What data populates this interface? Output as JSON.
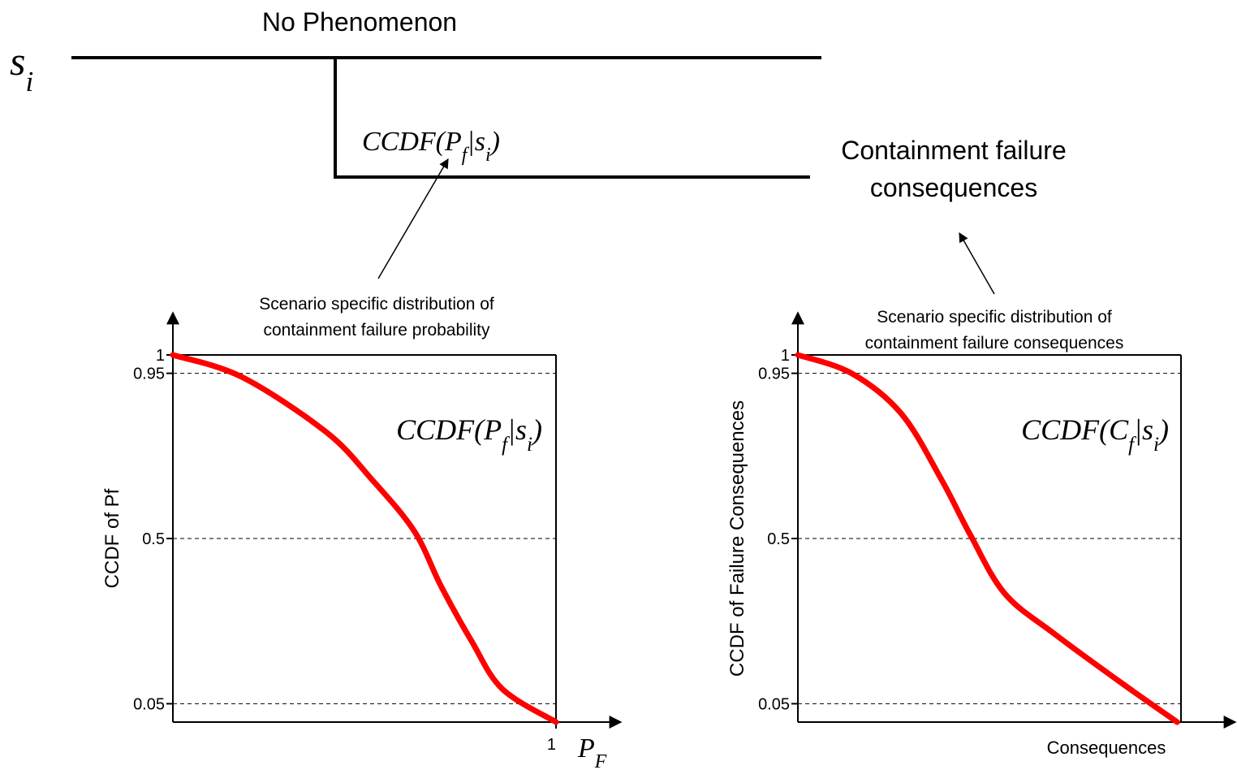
{
  "diagram": {
    "top_label": "No Phenomenon",
    "state": [
      {
        "t": "s"
      },
      {
        "t": "i",
        "sub": true
      }
    ],
    "branch_label": [
      {
        "t": "CCDF("
      },
      {
        "t": "P"
      },
      {
        "t": "f",
        "sub": true
      },
      {
        "t": "|"
      },
      {
        "t": "s"
      },
      {
        "t": "i",
        "sub": true
      },
      {
        "t": ")"
      }
    ],
    "outcome_label": [
      "Containment failure",
      "consequences"
    ]
  },
  "chart_data": [
    {
      "type": "line",
      "title": [
        "Scenario specific distribution of",
        "containment failure probability"
      ],
      "ylabel": "CCDF of Pf",
      "xlabel": [
        {
          "t": "P"
        },
        {
          "t": "F",
          "sub": true
        }
      ],
      "annotation": [
        {
          "t": "CCDF("
        },
        {
          "t": "P"
        },
        {
          "t": "f",
          "sub": true
        },
        {
          "t": "|"
        },
        {
          "t": "s"
        },
        {
          "t": "i",
          "sub": true
        },
        {
          "t": ")"
        }
      ],
      "xlim": [
        0,
        1
      ],
      "xticks": [
        1
      ],
      "ylim": [
        0,
        1
      ],
      "yticks": [
        1,
        0.95,
        0.5,
        0.05
      ],
      "grid": true,
      "x": [
        0,
        0.18,
        0.4,
        0.52,
        0.63,
        0.7,
        0.78,
        0.86,
        1
      ],
      "series": [
        {
          "color": "#ff0000",
          "values": [
            1,
            0.94,
            0.79,
            0.66,
            0.52,
            0.37,
            0.22,
            0.09,
            0
          ]
        }
      ]
    },
    {
      "type": "line",
      "title": [
        "Scenario specific distribution of",
        "containment failure consequences"
      ],
      "ylabel": "CCDF of Failure Consequences",
      "xlabel": "Consequences",
      "annotation": [
        {
          "t": "CCDF("
        },
        {
          "t": "C"
        },
        {
          "t": "f",
          "sub": true
        },
        {
          "t": "|"
        },
        {
          "t": "s"
        },
        {
          "t": "i",
          "sub": true
        },
        {
          "t": ")"
        }
      ],
      "xlim": [
        0,
        1
      ],
      "ylim": [
        0,
        1
      ],
      "yticks": [
        1,
        0.95,
        0.5,
        0.05
      ],
      "grid": true,
      "x": [
        0,
        0.14,
        0.27,
        0.375,
        0.45,
        0.54,
        0.67,
        0.84,
        0.99
      ],
      "series": [
        {
          "color": "#ff0000",
          "values": [
            1,
            0.95,
            0.84,
            0.66,
            0.51,
            0.35,
            0.24,
            0.11,
            0
          ]
        }
      ]
    }
  ]
}
